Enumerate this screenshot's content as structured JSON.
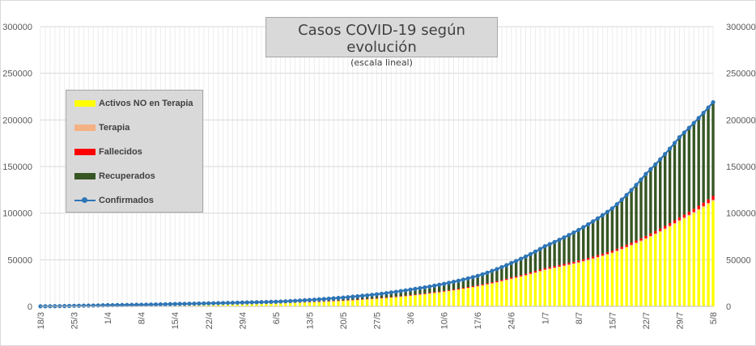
{
  "chart_data": {
    "type": "area",
    "title": "Casos COVID-19 según evolución",
    "subtitle": "(escala lineal)",
    "xlabel": "",
    "ylabel": "",
    "ylim": [
      0,
      300000
    ],
    "y_ticks": [
      "0",
      "50000",
      "100000",
      "150000",
      "200000",
      "250000",
      "300000"
    ],
    "x_tick_labels": [
      "18/3",
      "25/3",
      "1/4",
      "8/4",
      "15/4",
      "22/4",
      "29/4",
      "6/5",
      "13/5",
      "20/5",
      "27/5",
      "3/6",
      "10/6",
      "17/6",
      "24/6",
      "1/7",
      "8/7",
      "15/7",
      "22/7",
      "29/7",
      "5/8"
    ],
    "x_tick_step_days": 7,
    "days_count": 141,
    "legend_placement": "left",
    "grid": true,
    "colors": {
      "activos": "#ffff00",
      "terapia": "#f4b183",
      "fallecidos": "#ff0000",
      "recuperados": "#375623",
      "confirmados": "#2e75b6"
    },
    "series": [
      {
        "name": "Activos NO en Terapia",
        "key": "activos",
        "style": "bar",
        "x": [
          "18/3",
          "25/3",
          "1/4",
          "8/4",
          "15/4",
          "22/4",
          "29/4",
          "6/5",
          "13/5",
          "20/5",
          "27/5",
          "3/6",
          "10/6",
          "17/6",
          "24/6",
          "1/7",
          "8/7",
          "15/7",
          "22/7",
          "29/7",
          "5/8"
        ],
        "values": [
          80,
          500,
          900,
          1300,
          1600,
          2000,
          2500,
          3200,
          4300,
          5900,
          8100,
          11300,
          15600,
          21300,
          29200,
          38800,
          46500,
          56800,
          72000,
          91200,
          113000
        ]
      },
      {
        "name": "Terapia",
        "key": "terapia",
        "style": "bar",
        "x": [
          "18/3",
          "25/3",
          "1/4",
          "8/4",
          "15/4",
          "22/4",
          "29/4",
          "6/5",
          "13/5",
          "20/5",
          "27/5",
          "3/6",
          "10/6",
          "17/6",
          "24/6",
          "1/7",
          "8/7",
          "15/7",
          "22/7",
          "29/7",
          "5/8"
        ],
        "values": [
          5,
          20,
          60,
          90,
          110,
          120,
          110,
          110,
          120,
          140,
          160,
          240,
          300,
          420,
          560,
          700,
          800,
          920,
          1050,
          1180,
          1280
        ]
      },
      {
        "name": "Fallecidos",
        "key": "fallecidos",
        "style": "bar",
        "x": [
          "18/3",
          "25/3",
          "1/4",
          "8/4",
          "15/4",
          "22/4",
          "29/4",
          "6/5",
          "13/5",
          "20/5",
          "27/5",
          "3/6",
          "10/6",
          "17/6",
          "24/6",
          "1/7",
          "8/7",
          "15/7",
          "22/7",
          "29/7",
          "5/8"
        ],
        "values": [
          2,
          8,
          30,
          90,
          150,
          200,
          230,
          280,
          350,
          420,
          510,
          630,
          820,
          1000,
          1280,
          1580,
          1800,
          2100,
          2540,
          3100,
          4100
        ]
      },
      {
        "name": "Recuperados",
        "key": "recuperados",
        "style": "bar",
        "x": [
          "18/3",
          "25/3",
          "1/4",
          "8/4",
          "15/4",
          "22/4",
          "29/4",
          "6/5",
          "13/5",
          "20/5",
          "27/5",
          "3/6",
          "10/6",
          "17/6",
          "24/6",
          "1/7",
          "8/7",
          "15/7",
          "22/7",
          "29/7",
          "5/8"
        ],
        "values": [
          0,
          50,
          200,
          320,
          800,
          1100,
          1300,
          1400,
          2100,
          3000,
          4200,
          5800,
          7500,
          10000,
          15500,
          23500,
          33000,
          45000,
          67000,
          86000,
          100000
        ]
      },
      {
        "name": "Confirmados",
        "key": "confirmados",
        "style": "line",
        "x": [
          "18/3",
          "25/3",
          "1/4",
          "8/4",
          "15/4",
          "22/4",
          "29/4",
          "6/5",
          "13/5",
          "20/5",
          "27/5",
          "3/6",
          "10/6",
          "17/6",
          "24/6",
          "1/7",
          "8/7",
          "15/7",
          "22/7",
          "29/7",
          "5/8"
        ],
        "values": [
          80,
          600,
          1300,
          1800,
          2600,
          3300,
          4100,
          5000,
          6900,
          9500,
          13000,
          18000,
          24200,
          32700,
          46500,
          64500,
          82000,
          105000,
          142000,
          181500,
          219000
        ]
      }
    ]
  }
}
